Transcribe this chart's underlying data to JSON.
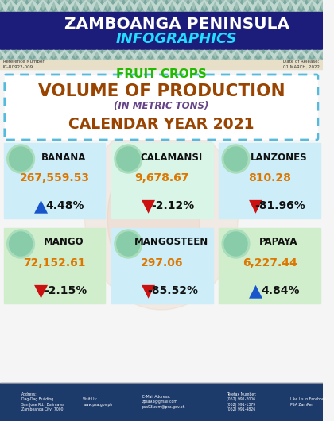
{
  "title_main": "ZAMBOANGA PENINSULA",
  "title_sub": "INFOGRAPHICS",
  "ref_number": "IG-R0922-009",
  "date_release": "01 MARCH, 2022",
  "section_title": "FRUIT CROPS",
  "vol_title": "VOLUME OF PRODUCTION",
  "vol_subtitle": "(IN METRIC TONS)",
  "year_title": "CALENDAR YEAR 2021",
  "fruits": [
    {
      "name": "BANANA",
      "value": "267,559.53",
      "pct": "4.48%",
      "arrow": "up",
      "arrow_color": "#1a55cc"
    },
    {
      "name": "CALAMANSI",
      "value": "9,678.67",
      "pct": "-2.12%",
      "arrow": "down",
      "arrow_color": "#cc1111"
    },
    {
      "name": "LANZONES",
      "value": "810.28",
      "pct": "-81.96%",
      "arrow": "down",
      "arrow_color": "#cc1111"
    },
    {
      "name": "MANGO",
      "value": "72,152.61",
      "pct": "-2.15%",
      "arrow": "down",
      "arrow_color": "#cc1111"
    },
    {
      "name": "MANGOSTEEN",
      "value": "297.06",
      "pct": "-85.52%",
      "arrow": "down",
      "arrow_color": "#cc1111"
    },
    {
      "name": "PAPAYA",
      "value": "6,227.44",
      "pct": "4.84%",
      "arrow": "up",
      "arrow_color": "#1a55cc"
    }
  ],
  "bg_color": "#f5f5f5",
  "header_dark_bg": "#1c1c7a",
  "header_pattern_bg": "#b0c8c0",
  "ref_strip_bg": "#e8dfc8",
  "cell_bg": "#c8eef5",
  "cell_bg_green": "#d0eedd",
  "border_color": "#55bbdd",
  "fruit_crops_color": "#22bb00",
  "vol_color": "#994400",
  "subtitle_color": "#664488",
  "year_color": "#994400",
  "value_color": "#dd7700",
  "pct_color": "#111111",
  "footer_bg": "#1c3a6a",
  "footer_text": "#ffffff",
  "name_color": "#111111"
}
